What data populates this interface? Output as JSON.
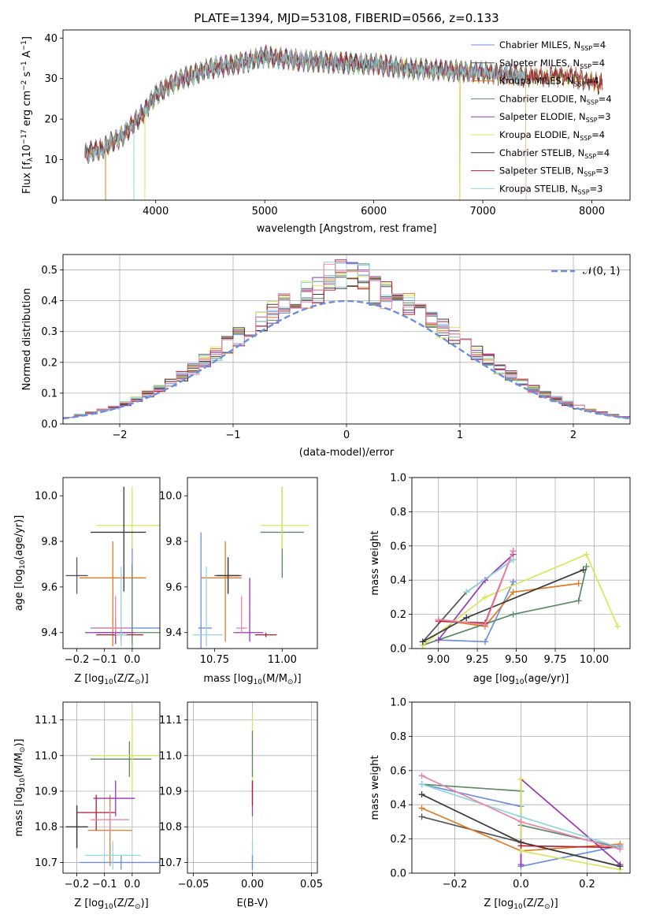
{
  "figure": {
    "title": "PLATE=1394, MJD=53108, FIBERID=0566, z=0.133"
  },
  "colors": {
    "Chabrier MILES": "#6b8fe0",
    "Salpeter MILES": "#555555",
    "Kroupa MILES": "#e07a25",
    "Chabrier ELODIE": "#5a8a63",
    "Salpeter ELODIE": "#9a36b8",
    "Kroupa ELODIE": "#d6e85a",
    "Chabrier STELIB": "#3a3a3a",
    "Salpeter STELIB": "#b21e2e",
    "Kroupa STELIB": "#8fd6e0",
    "extra": "#e886ad"
  },
  "chart_data": [
    {
      "id": "spectrum",
      "type": "line",
      "title": "PLATE=1394, MJD=53108, FIBERID=0566, z=0.133",
      "xlabel": "wavelength [Angstrom, rest frame]",
      "ylabel_parts": [
        "Flux [f",
        "λ",
        "10",
        "−17",
        " erg cm",
        "−2",
        " s",
        "−1",
        " A",
        "−1",
        "]"
      ],
      "xlim": [
        3150,
        8350
      ],
      "ylim": [
        0,
        42
      ],
      "xticks": [
        4000,
        5000,
        6000,
        7000,
        8000
      ],
      "yticks": [
        0,
        10,
        20,
        30,
        40
      ],
      "grid": false,
      "legend": "top-right",
      "continuum": {
        "x": [
          3350,
          3500,
          3700,
          3900,
          4000,
          4200,
          4500,
          4800,
          5000,
          5300,
          5600,
          6000,
          6300,
          6600,
          7000,
          7400,
          7800,
          8100
        ],
        "y": [
          11.5,
          12.5,
          16,
          22,
          26,
          29.5,
          32.5,
          34,
          35.5,
          34.5,
          34,
          33.5,
          32.5,
          32,
          31.5,
          30.5,
          30.5,
          28.5
        ]
      },
      "series": [
        {
          "name": "Chabrier MILES",
          "nssp": "4",
          "x_range": [
            3350,
            7400
          ],
          "drops": []
        },
        {
          "name": "Salpeter MILES",
          "nssp": "4",
          "x_range": [
            3350,
            7400
          ],
          "drops": []
        },
        {
          "name": "Kroupa MILES",
          "nssp": "4",
          "x_range": [
            3350,
            7400
          ],
          "drops": [
            3540,
            6790,
            7400
          ]
        },
        {
          "name": "Chabrier ELODIE",
          "nssp": "4",
          "x_range": [
            3350,
            7400
          ],
          "drops": []
        },
        {
          "name": "Salpeter ELODIE",
          "nssp": "3",
          "x_range": [
            3350,
            7400
          ],
          "drops": []
        },
        {
          "name": "Kroupa ELODIE",
          "nssp": "4",
          "x_range": [
            3350,
            8100
          ],
          "drops": [
            3900,
            6790
          ]
        },
        {
          "name": "Chabrier STELIB",
          "nssp": "4",
          "x_range": [
            3350,
            8100
          ],
          "drops": []
        },
        {
          "name": "Salpeter STELIB",
          "nssp": "3",
          "x_range": [
            3350,
            8100
          ],
          "drops": []
        },
        {
          "name": "Kroupa STELIB",
          "nssp": "3",
          "x_range": [
            3350,
            7400
          ],
          "drops": [
            3800
          ]
        }
      ]
    },
    {
      "id": "residuals",
      "type": "histogram",
      "xlabel": "(data-model)/error",
      "ylabel": "Normed distribution",
      "xlim": [
        -2.5,
        2.5
      ],
      "ylim": [
        0,
        0.55
      ],
      "xticks": [
        -2,
        -1,
        0,
        1,
        2
      ],
      "yticks": [
        0,
        0.1,
        0.2,
        0.3,
        0.4,
        0.5
      ],
      "grid": true,
      "legend": "top-right",
      "reference_label": "𝒩(0, 1)",
      "reference_color": "#6b8fe0",
      "bin_width": 0.1
    },
    {
      "id": "age-vs-Z",
      "type": "errorbar",
      "xlabel_parts": [
        "Z [log",
        "10",
        "(Z/Z",
        "⊙",
        ")]"
      ],
      "ylabel_parts": [
        "age  [log",
        "10",
        "(age/yr)]"
      ],
      "xlim": [
        -0.25,
        0.1
      ],
      "ylim": [
        9.33,
        10.08
      ],
      "xticks": [
        -0.2,
        -0.1,
        0.0
      ],
      "yticks": [
        9.4,
        9.6,
        9.8,
        10.0
      ],
      "grid": false,
      "points": [
        {
          "c": "Chabrier MILES",
          "x": 0.0,
          "xe": [
            0.15,
            0.15
          ],
          "y": 9.42,
          "ye": [
            0.09,
            0.42
          ]
        },
        {
          "c": "Salpeter MILES",
          "x": -0.2,
          "xe": [
            0.04,
            0.04
          ],
          "y": 9.65,
          "ye": [
            0.08,
            0.08
          ]
        },
        {
          "c": "Kroupa MILES",
          "x": -0.07,
          "xe": [
            0.12,
            0.12
          ],
          "y": 9.64,
          "ye": [
            0.3,
            0.16
          ]
        },
        {
          "c": "Chabrier ELODIE",
          "x": 0.0,
          "xe": [
            0.13,
            0.13
          ],
          "y": 9.4,
          "ye": [
            0.05,
            0.3
          ]
        },
        {
          "c": "Salpeter ELODIE",
          "x": -0.06,
          "xe": [
            0.11,
            0.07
          ],
          "y": 9.4,
          "ye": [
            0.05,
            0.06
          ]
        },
        {
          "c": "Kroupa ELODIE",
          "x": 0.0,
          "xe": [
            0.13,
            0.13
          ],
          "y": 9.87,
          "ye": [
            0.1,
            0.17
          ]
        },
        {
          "c": "Chabrier STELIB",
          "x": -0.03,
          "xe": [
            0.12,
            0.08
          ],
          "y": 9.84,
          "ye": [
            0.26,
            0.2
          ]
        },
        {
          "c": "Salpeter STELIB",
          "x": -0.04,
          "xe": [
            0.09,
            0.08
          ],
          "y": 9.39,
          "ye": [
            0.03,
            0.03
          ]
        },
        {
          "c": "Kroupa STELIB",
          "x": -0.04,
          "xe": [
            0.02,
            0.02
          ],
          "y": 9.39,
          "ye": [
            0.05,
            0.3
          ]
        },
        {
          "c": "extra",
          "x": -0.06,
          "xe": [
            0.08,
            0.05
          ],
          "y": 9.42,
          "ye": [
            0.02,
            0.14
          ]
        }
      ]
    },
    {
      "id": "age-vs-mass",
      "type": "errorbar",
      "xlabel_parts": [
        "mass [log",
        "10",
        "(M/M",
        "⊙",
        ")]"
      ],
      "xlim": [
        10.65,
        11.13
      ],
      "ylim": [
        9.33,
        10.08
      ],
      "xticks": [
        10.75,
        11.0
      ],
      "yticks": [
        9.4,
        9.6,
        9.8,
        10.0
      ],
      "grid": false,
      "points": [
        {
          "c": "Chabrier MILES",
          "x": 10.7,
          "xe": [
            0.01,
            0.04
          ],
          "y": 9.42,
          "ye": [
            0.1,
            0.42
          ]
        },
        {
          "c": "Salpeter MILES",
          "x": 10.8,
          "xe": [
            0.05,
            0.05
          ],
          "y": 9.65,
          "ye": [
            0.08,
            0.08
          ]
        },
        {
          "c": "Kroupa MILES",
          "x": 10.79,
          "xe": [
            0.09,
            0.06
          ],
          "y": 9.64,
          "ye": [
            0.28,
            0.16
          ]
        },
        {
          "c": "Chabrier ELODIE",
          "x": 11.0,
          "xe": [
            0.08,
            0.08
          ],
          "y": 9.84,
          "ye": [
            0.2,
            0.2
          ]
        },
        {
          "c": "Salpeter ELODIE",
          "x": 10.88,
          "xe": [
            0.06,
            0.05
          ],
          "y": 9.4,
          "ye": [
            0.04,
            0.24
          ]
        },
        {
          "c": "Kroupa ELODIE",
          "x": 11.0,
          "xe": [
            0.08,
            0.1
          ],
          "y": 9.87,
          "ye": [
            0.1,
            0.17
          ]
        },
        {
          "c": "Chabrier STELIB",
          "x": 10.8,
          "xe": [
            0.04,
            0.04
          ],
          "y": 9.65,
          "ye": [
            0.08,
            0.08
          ]
        },
        {
          "c": "Salpeter STELIB",
          "x": 10.94,
          "xe": [
            0.04,
            0.04
          ],
          "y": 9.39,
          "ye": [
            0.01,
            0.01
          ]
        },
        {
          "c": "Kroupa STELIB",
          "x": 10.72,
          "xe": [
            0.05,
            0.06
          ],
          "y": 9.39,
          "ye": [
            0.05,
            0.3
          ]
        },
        {
          "c": "extra",
          "x": 10.85,
          "xe": [
            0.02,
            0.02
          ],
          "y": 9.42,
          "ye": [
            0.02,
            0.14
          ]
        }
      ]
    },
    {
      "id": "massweight-vs-age",
      "type": "line",
      "xlabel_parts": [
        "age  [log",
        "10",
        "(age/yr)]"
      ],
      "ylabel": "mass weight",
      "xlim": [
        8.83,
        10.23
      ],
      "ylim": [
        0,
        1
      ],
      "xticks": [
        9.0,
        9.25,
        9.5,
        9.75,
        10.0
      ],
      "yticks": [
        0,
        0.2,
        0.4,
        0.6,
        0.8,
        1.0
      ],
      "grid": true,
      "series": [
        {
          "c": "Chabrier MILES",
          "x": [
            9.0,
            9.3,
            9.48,
            9.48
          ],
          "y": [
            0.05,
            0.04,
            0.39,
            0.39
          ]
        },
        {
          "c": "Salpeter MILES",
          "x": [
            8.9,
            9.18,
            9.48
          ],
          "y": [
            0.04,
            0.33,
            0.52
          ]
        },
        {
          "c": "Kroupa MILES",
          "x": [
            9.0,
            9.3,
            9.48,
            9.9
          ],
          "y": [
            0.17,
            0.13,
            0.33,
            0.38
          ]
        },
        {
          "c": "Chabrier ELODIE",
          "x": [
            8.9,
            9.48,
            9.9,
            9.95
          ],
          "y": [
            0.02,
            0.2,
            0.28,
            0.48
          ]
        },
        {
          "c": "Salpeter ELODIE",
          "x": [
            9.0,
            9.3,
            9.48
          ],
          "y": [
            0.05,
            0.4,
            0.55
          ]
        },
        {
          "c": "Kroupa ELODIE",
          "x": [
            8.9,
            9.3,
            9.95,
            10.15
          ],
          "y": [
            0.02,
            0.3,
            0.55,
            0.13
          ]
        },
        {
          "c": "Chabrier STELIB",
          "x": [
            8.9,
            9.18,
            9.93
          ],
          "y": [
            0.04,
            0.18,
            0.46
          ]
        },
        {
          "c": "Salpeter STELIB",
          "x": [
            9.0,
            9.3,
            9.48
          ],
          "y": [
            0.16,
            0.15,
            0.57
          ]
        },
        {
          "c": "Kroupa STELIB",
          "x": [
            9.18,
            9.48
          ],
          "y": [
            0.33,
            0.52
          ]
        },
        {
          "c": "extra",
          "x": [
            9.0,
            9.3,
            9.48
          ],
          "y": [
            0.17,
            0.14,
            0.57
          ]
        }
      ]
    },
    {
      "id": "mass-vs-Z",
      "type": "errorbar",
      "xlabel_parts": [
        "Z [log",
        "10",
        "(Z/Z",
        "⊙",
        ")]"
      ],
      "ylabel_parts": [
        "mass [log",
        "10",
        "(M/M",
        "⊙",
        ")]"
      ],
      "xlim": [
        -0.25,
        0.1
      ],
      "ylim": [
        10.67,
        11.15
      ],
      "xticks": [
        -0.2,
        -0.1,
        0.0
      ],
      "yticks": [
        10.7,
        10.8,
        10.9,
        11.0,
        11.1
      ],
      "grid": true,
      "points": [
        {
          "c": "Chabrier MILES",
          "x": -0.04,
          "xe": [
            0.15,
            0.15
          ],
          "y": 10.7,
          "ye": [
            0.02,
            0.02
          ]
        },
        {
          "c": "Salpeter MILES",
          "x": -0.2,
          "xe": [
            0.04,
            0.04
          ],
          "y": 10.8,
          "ye": [
            0.06,
            0.06
          ]
        },
        {
          "c": "Kroupa MILES",
          "x": -0.08,
          "xe": [
            0.08,
            0.08
          ],
          "y": 10.79,
          "ye": [
            0.1,
            0.1
          ]
        },
        {
          "c": "Chabrier ELODIE",
          "x": -0.01,
          "xe": [
            0.14,
            0.08
          ],
          "y": 10.99,
          "ye": [
            0.05,
            0.05
          ]
        },
        {
          "c": "Salpeter ELODIE",
          "x": -0.06,
          "xe": [
            0.08,
            0.07
          ],
          "y": 10.88,
          "ye": [
            0.05,
            0.05
          ]
        },
        {
          "c": "Kroupa ELODIE",
          "x": 0.0,
          "xe": [
            0.14,
            0.13
          ],
          "y": 11.0,
          "ye": [
            0.1,
            0.12
          ]
        },
        {
          "c": "Chabrier STELIB",
          "x": -0.2,
          "xe": [
            0.04,
            0.04
          ],
          "y": 10.8,
          "ye": [
            0.06,
            0.06
          ]
        },
        {
          "c": "Salpeter STELIB",
          "x": -0.13,
          "xe": [
            0.07,
            0.07
          ],
          "y": 10.84,
          "ye": [
            0.05,
            0.05
          ]
        },
        {
          "c": "Kroupa STELIB",
          "x": -0.07,
          "xe": [
            0.1,
            0.1
          ],
          "y": 10.72,
          "ye": [
            0.04,
            0.04
          ]
        },
        {
          "c": "extra",
          "x": -0.08,
          "xe": [
            0.07,
            0.07
          ],
          "y": 10.82,
          "ye": [
            0.04,
            0.04
          ]
        }
      ]
    },
    {
      "id": "mass-vs-ebv",
      "type": "errorbar",
      "xlabel": "E(B-V)",
      "xlim": [
        -0.055,
        0.055
      ],
      "ylim": [
        10.67,
        11.15
      ],
      "xticks": [
        -0.05,
        0.0,
        0.05
      ],
      "xtick_labels": [
        "−0.05",
        "0.00",
        "0.05"
      ],
      "yticks": [
        10.7,
        10.8,
        10.9,
        11.0,
        11.1
      ],
      "grid": true,
      "points": [
        {
          "c": "Kroupa ELODIE",
          "x": 0.0,
          "xe": [
            0,
            0
          ],
          "y": 11.0,
          "ye": [
            0.1,
            0.12
          ]
        },
        {
          "c": "Chabrier ELODIE",
          "x": 0.0,
          "xe": [
            0,
            0
          ],
          "y": 10.99,
          "ye": [
            0.05,
            0.08
          ]
        },
        {
          "c": "Salpeter ELODIE",
          "x": 0.0,
          "xe": [
            0,
            0
          ],
          "y": 10.88,
          "ye": [
            0.05,
            0.05
          ]
        },
        {
          "c": "Salpeter STELIB",
          "x": 0.0,
          "xe": [
            0,
            0
          ],
          "y": 10.89,
          "ye": [
            0.03,
            0.04
          ]
        },
        {
          "c": "Kroupa STELIB",
          "x": 0.0,
          "xe": [
            0,
            0
          ],
          "y": 10.72,
          "ye": [
            0.04,
            0.04
          ]
        },
        {
          "c": "Chabrier MILES",
          "x": 0.0,
          "xe": [
            0,
            0
          ],
          "y": 10.7,
          "ye": [
            0.02,
            0.02
          ]
        }
      ]
    },
    {
      "id": "massweight-vs-Z",
      "type": "line",
      "xlabel_parts": [
        "Z [log",
        "10",
        "(Z/Z",
        "⊙",
        ")]"
      ],
      "ylabel": "mass weight",
      "xlim": [
        -0.33,
        0.33
      ],
      "ylim": [
        0,
        1
      ],
      "xticks": [
        -0.2,
        0.0,
        0.2
      ],
      "xtick_labels": [
        "−0.2",
        "0.0",
        "0.2"
      ],
      "yticks": [
        0,
        0.2,
        0.4,
        0.6,
        0.8,
        1.0
      ],
      "grid": true,
      "series": [
        {
          "c": "Chabrier MILES",
          "x": [
            -0.3,
            0.0,
            0.0,
            0.3
          ],
          "y": [
            0.52,
            0.39,
            0.04,
            0.16
          ]
        },
        {
          "c": "Salpeter MILES",
          "x": [
            -0.3,
            0.0,
            0.3
          ],
          "y": [
            0.33,
            0.18,
            0.04
          ]
        },
        {
          "c": "Kroupa MILES",
          "x": [
            -0.3,
            0.0,
            0.3
          ],
          "y": [
            0.38,
            0.13,
            0.17
          ]
        },
        {
          "c": "Chabrier ELODIE",
          "x": [
            -0.3,
            0.0,
            0.0,
            0.3
          ],
          "y": [
            0.52,
            0.48,
            0.28,
            0.15
          ]
        },
        {
          "c": "Salpeter ELODIE",
          "x": [
            0.0,
            0.0,
            0.3
          ],
          "y": [
            0.05,
            0.55,
            0.05
          ]
        },
        {
          "c": "Kroupa ELODIE",
          "x": [
            0.0,
            0.0,
            0.3
          ],
          "y": [
            0.55,
            0.13,
            0.02
          ]
        },
        {
          "c": "Chabrier STELIB",
          "x": [
            -0.3,
            0.0,
            0.3
          ],
          "y": [
            0.46,
            0.18,
            0.04
          ]
        },
        {
          "c": "Salpeter STELIB",
          "x": [
            0.0,
            0.3
          ],
          "y": [
            0.16,
            0.15
          ]
        },
        {
          "c": "Kroupa STELIB",
          "x": [
            -0.3,
            0.0,
            0.3
          ],
          "y": [
            0.52,
            0.33,
            0.15
          ]
        },
        {
          "c": "extra",
          "x": [
            -0.3,
            0.0,
            0.3
          ],
          "y": [
            0.57,
            0.3,
            0.14
          ]
        }
      ]
    }
  ]
}
